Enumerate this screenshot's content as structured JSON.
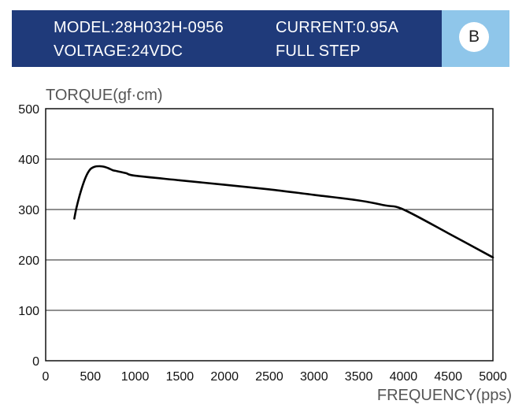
{
  "header": {
    "model": "MODEL:28H032H-0956",
    "current": "CURRENT:0.95A",
    "voltage": "VOLTAGE:24VDC",
    "step": "FULL STEP",
    "badge": "B",
    "colors": {
      "banner": "#1f3a7a",
      "badge_panel": "#8fc6ea"
    }
  },
  "chart_data": {
    "type": "line",
    "ylabel": "TORQUE(gf·cm)",
    "xlabel": "FREQUENCY(pps)",
    "xlim": [
      0,
      5000
    ],
    "ylim": [
      0,
      500
    ],
    "xticks": [
      "0",
      "500",
      "1000",
      "1500",
      "2000",
      "2500",
      "3000",
      "3500",
      "4000",
      "4500",
      "5000"
    ],
    "yticks": [
      "0",
      "100",
      "200",
      "300",
      "400",
      "500"
    ],
    "grid": "horizontal",
    "series": [
      {
        "x": [
          320,
          350,
          400,
          450,
          500,
          550,
          600,
          650,
          700,
          750,
          800,
          900,
          1000,
          1500,
          2000,
          2500,
          3000,
          3500,
          3800,
          4000,
          4500,
          5000
        ],
        "y": [
          282,
          308,
          340,
          365,
          380,
          385,
          386,
          385,
          382,
          378,
          376,
          372,
          367,
          358,
          349,
          340,
          329,
          318,
          308,
          300,
          253,
          205
        ]
      }
    ]
  }
}
